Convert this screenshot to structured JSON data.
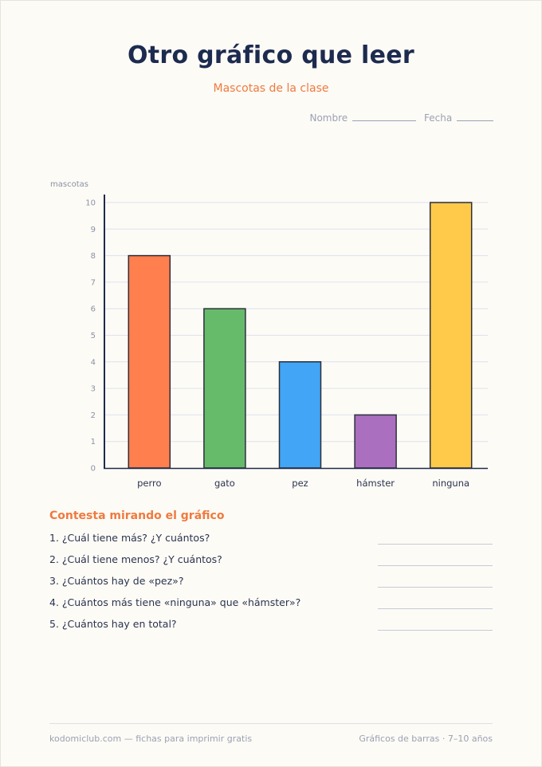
{
  "header": {
    "title": "Otro gráfico que leer",
    "subtitle": "Mascotas de la clase",
    "name_label": "Nombre",
    "date_label": "Fecha"
  },
  "chart_data": {
    "type": "bar",
    "title": "Mascotas de la clase",
    "xlabel": "",
    "ylabel": "mascotas",
    "categories": [
      "perro",
      "gato",
      "pez",
      "hámster",
      "ninguna"
    ],
    "values": [
      8,
      6,
      4,
      2,
      10
    ],
    "colors": [
      "#ff7f4f",
      "#66bb6a",
      "#42a5f5",
      "#ab6fc0",
      "#ffc94a"
    ],
    "ylim": [
      0,
      10
    ],
    "yticks": [
      "0",
      "1",
      "2",
      "3",
      "4",
      "5",
      "6",
      "7",
      "8",
      "9",
      "10"
    ],
    "grid": true,
    "legend": "none"
  },
  "questions": {
    "heading": "Contesta mirando el gráfico",
    "items": [
      "1. ¿Cuál tiene más? ¿Y cuántos?",
      "2. ¿Cuál tiene menos? ¿Y cuántos?",
      "3. ¿Cuántos hay de «pez»?",
      "4. ¿Cuántos más tiene «ninguna» que «hámster»?",
      "5. ¿Cuántos hay en total?"
    ]
  },
  "footer": {
    "left": "kodomiclub.com — fichas para imprimir gratis",
    "right": "Gráficos de barras · 7–10 años"
  }
}
